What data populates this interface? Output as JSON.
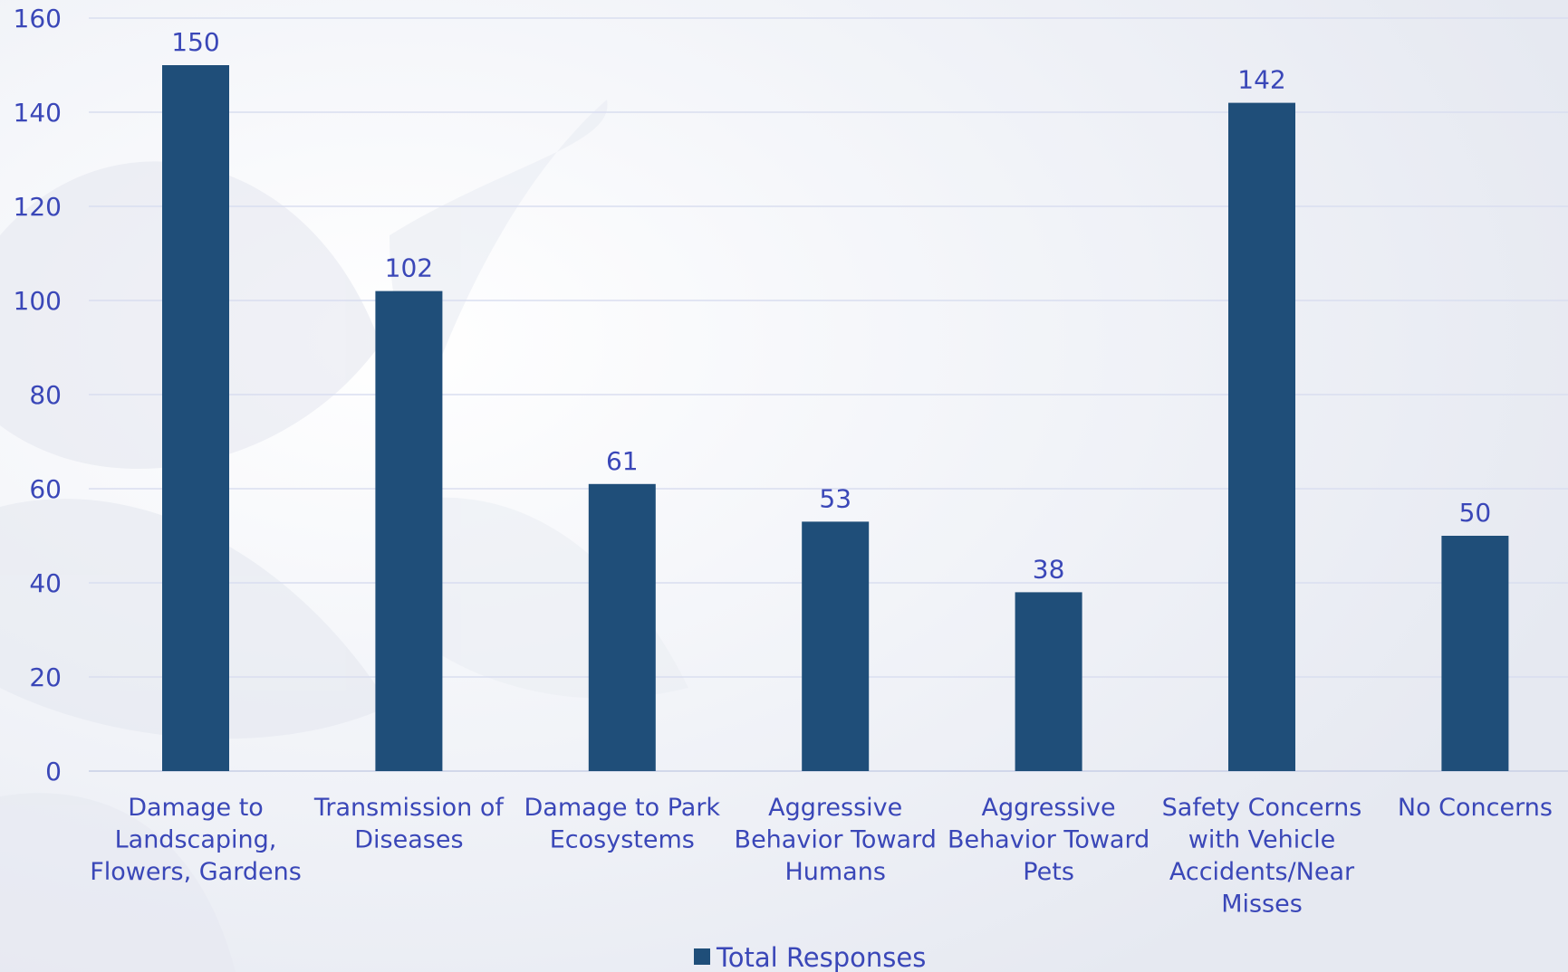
{
  "chart_data": {
    "type": "bar",
    "title": "",
    "xlabel": "",
    "ylabel": "",
    "categories": [
      [
        "Damage to",
        "Landscaping,",
        "Flowers, Gardens"
      ],
      [
        "Transmission of",
        "Diseases"
      ],
      [
        "Damage to Park",
        "Ecosystems"
      ],
      [
        "Aggressive",
        "Behavior Toward",
        "Humans"
      ],
      [
        "Aggressive",
        "Behavior Toward",
        "Pets"
      ],
      [
        "Safety Concerns",
        "with Vehicle",
        "Accidents/Near",
        "Misses"
      ],
      [
        "No Concerns"
      ]
    ],
    "series": [
      {
        "name": "Total Responses",
        "values": [
          150,
          102,
          61,
          53,
          38,
          142,
          50
        ]
      }
    ],
    "ylim": [
      0,
      160
    ],
    "yticks": [
      0,
      20,
      40,
      60,
      80,
      100,
      120,
      140,
      160
    ],
    "grid": true,
    "legend_position": "bottom",
    "colors": {
      "bar": "#1f4e79",
      "text": "#3a47b8",
      "grid": "#d9def0",
      "axis": "#c8cfe6",
      "background": "#f2f4f8"
    }
  }
}
